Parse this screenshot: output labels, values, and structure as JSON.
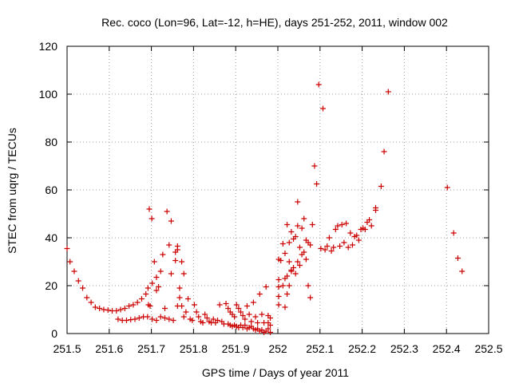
{
  "chart_data": {
    "type": "scatter",
    "title": "Rec. coco (Lon=96, Lat=-12, h=HE), days 251-252, 2011, window 002",
    "xlabel": "GPS time / Days of year 2011",
    "ylabel": "STEC from uqrg / TECUs",
    "xlim": [
      251.5,
      252.5
    ],
    "ylim": [
      0,
      120
    ],
    "xticks": [
      251.5,
      251.6,
      251.7,
      251.8,
      251.9,
      252,
      252.1,
      252.2,
      252.3,
      252.4,
      252.5
    ],
    "xtick_labels": [
      "251.5",
      "251.6",
      "251.7",
      "251.8",
      "251.9",
      "252",
      "252.1",
      "252.2",
      "252.3",
      "252.4",
      "252.5"
    ],
    "yticks": [
      0,
      20,
      40,
      60,
      80,
      100,
      120
    ],
    "ytick_labels": [
      "0",
      "20",
      "40",
      "60",
      "80",
      "100",
      "120"
    ],
    "grid": true,
    "marker": "plus",
    "color": "#cc0000",
    "series": [
      {
        "name": "STEC",
        "points": [
          [
            251.5,
            35.5
          ],
          [
            251.507,
            30
          ],
          [
            251.517,
            26
          ],
          [
            251.527,
            22
          ],
          [
            251.537,
            19
          ],
          [
            251.547,
            15
          ],
          [
            251.557,
            13
          ],
          [
            251.567,
            11
          ],
          [
            251.577,
            10.5
          ],
          [
            251.587,
            10
          ],
          [
            251.597,
            9.8
          ],
          [
            251.607,
            9.5
          ],
          [
            251.617,
            9.5
          ],
          [
            251.627,
            10
          ],
          [
            251.637,
            10.5
          ],
          [
            251.647,
            11.5
          ],
          [
            251.657,
            12
          ],
          [
            251.667,
            13
          ],
          [
            251.677,
            14.5
          ],
          [
            251.687,
            16.5
          ],
          [
            251.692,
            19
          ],
          [
            251.702,
            21
          ],
          [
            251.712,
            23.5
          ],
          [
            251.722,
            26
          ],
          [
            251.621,
            6
          ],
          [
            251.631,
            5.5
          ],
          [
            251.641,
            5.5
          ],
          [
            251.651,
            5.8
          ],
          [
            251.661,
            6
          ],
          [
            251.671,
            6.5
          ],
          [
            251.681,
            7
          ],
          [
            251.691,
            7
          ],
          [
            251.695,
            52
          ],
          [
            251.701,
            48
          ],
          [
            251.693,
            12
          ],
          [
            251.697,
            11.5
          ],
          [
            251.707,
            30
          ],
          [
            251.712,
            18
          ],
          [
            251.717,
            19.5
          ],
          [
            251.702,
            6
          ],
          [
            251.712,
            5.5
          ],
          [
            251.727,
            33
          ],
          [
            251.732,
            10.5
          ],
          [
            251.737,
            51
          ],
          [
            251.742,
            37
          ],
          [
            251.747,
            25
          ],
          [
            251.747,
            47
          ],
          [
            251.722,
            7
          ],
          [
            251.732,
            6.5
          ],
          [
            251.742,
            6
          ],
          [
            251.752,
            5.5
          ],
          [
            251.757,
            34
          ],
          [
            251.757,
            30.5
          ],
          [
            251.762,
            36.5
          ],
          [
            251.762,
            35
          ],
          [
            251.767,
            19
          ],
          [
            251.772,
            30
          ],
          [
            251.777,
            25
          ],
          [
            251.767,
            15
          ],
          [
            251.762,
            11.5
          ],
          [
            251.772,
            11.5
          ],
          [
            251.777,
            7
          ],
          [
            251.787,
            14.5
          ],
          [
            251.782,
            9
          ],
          [
            251.792,
            6
          ],
          [
            251.797,
            5.5
          ],
          [
            251.802,
            12
          ],
          [
            251.807,
            9
          ],
          [
            251.812,
            7
          ],
          [
            251.817,
            5
          ],
          [
            251.822,
            4.5
          ],
          [
            251.827,
            8
          ],
          [
            251.832,
            6.5
          ],
          [
            251.837,
            5
          ],
          [
            251.842,
            4.5
          ],
          [
            251.847,
            6
          ],
          [
            251.852,
            4.5
          ],
          [
            251.857,
            5.5
          ],
          [
            251.862,
            12
          ],
          [
            251.867,
            5
          ],
          [
            251.872,
            4
          ],
          [
            251.877,
            12.5
          ],
          [
            251.882,
            10.5
          ],
          [
            251.887,
            9
          ],
          [
            251.892,
            8
          ],
          [
            251.897,
            7
          ],
          [
            251.902,
            12
          ],
          [
            251.907,
            10.5
          ],
          [
            251.912,
            9
          ],
          [
            251.917,
            7.5
          ],
          [
            251.922,
            6
          ],
          [
            251.927,
            11.5
          ],
          [
            251.932,
            8
          ],
          [
            251.937,
            5
          ],
          [
            251.942,
            13
          ],
          [
            251.947,
            7
          ],
          [
            251.952,
            4.5
          ],
          [
            251.957,
            16.5
          ],
          [
            251.962,
            8
          ],
          [
            251.967,
            4.5
          ],
          [
            251.972,
            19.5
          ],
          [
            251.977,
            7.5
          ],
          [
            251.982,
            6.5
          ],
          [
            251.977,
            4.5
          ],
          [
            251.982,
            3.5
          ],
          [
            251.977,
            2
          ],
          [
            251.882,
            4
          ],
          [
            251.887,
            3.5
          ],
          [
            251.892,
            3
          ],
          [
            251.897,
            3.5
          ],
          [
            251.902,
            3
          ],
          [
            251.907,
            2.5
          ],
          [
            251.912,
            3.5
          ],
          [
            251.917,
            2.5
          ],
          [
            251.922,
            3.5
          ],
          [
            251.927,
            2
          ],
          [
            251.932,
            2.5
          ],
          [
            251.937,
            3
          ],
          [
            251.942,
            2
          ],
          [
            251.947,
            1.5
          ],
          [
            251.952,
            2
          ],
          [
            251.957,
            1
          ],
          [
            251.962,
            1.5
          ],
          [
            251.967,
            0.5
          ],
          [
            251.972,
            1
          ],
          [
            251.982,
            0.5
          ],
          [
            252.002,
            31
          ],
          [
            252.007,
            30.5
          ],
          [
            252.012,
            37.5
          ],
          [
            252.017,
            33.5
          ],
          [
            252.022,
            45.5
          ],
          [
            252.027,
            38
          ],
          [
            252.027,
            30
          ],
          [
            252.032,
            42.5
          ],
          [
            252.032,
            26
          ],
          [
            252.037,
            39.5
          ],
          [
            252.042,
            40.5
          ],
          [
            252.047,
            55
          ],
          [
            252.047,
            45
          ],
          [
            252.052,
            36
          ],
          [
            252.057,
            44
          ],
          [
            252.062,
            48
          ],
          [
            252.067,
            39
          ],
          [
            252.072,
            38
          ],
          [
            252.077,
            37
          ],
          [
            252.082,
            45.5
          ],
          [
            252.087,
            70
          ],
          [
            252.092,
            62.5
          ],
          [
            252.097,
            104
          ],
          [
            252.102,
            35.5
          ],
          [
            252.107,
            94
          ],
          [
            252.112,
            35
          ],
          [
            252.117,
            36.5
          ],
          [
            252.122,
            40
          ],
          [
            252.127,
            34.5
          ],
          [
            252.132,
            36
          ],
          [
            252.137,
            43.5
          ],
          [
            252.142,
            45
          ],
          [
            252.147,
            36.5
          ],
          [
            252.152,
            45.5
          ],
          [
            252.157,
            38
          ],
          [
            252.162,
            46
          ],
          [
            252.167,
            36
          ],
          [
            252.172,
            42
          ],
          [
            252.177,
            37
          ],
          [
            252.182,
            40.5
          ],
          [
            252.187,
            41
          ],
          [
            252.192,
            39
          ],
          [
            252.197,
            43.5
          ],
          [
            252.202,
            44
          ],
          [
            252.207,
            43.5
          ],
          [
            252.212,
            46.5
          ],
          [
            252.217,
            47.5
          ],
          [
            252.222,
            45
          ],
          [
            252.232,
            51.5
          ],
          [
            252.232,
            52.5
          ],
          [
            252.245,
            61.5
          ],
          [
            252.252,
            76
          ],
          [
            252.262,
            101
          ],
          [
            252.002,
            22.5
          ],
          [
            252.002,
            19.5
          ],
          [
            252.002,
            15.5
          ],
          [
            252.002,
            12
          ],
          [
            252.012,
            20
          ],
          [
            252.017,
            23
          ],
          [
            252.022,
            16.5
          ],
          [
            252.017,
            11
          ],
          [
            252.022,
            24
          ],
          [
            252.027,
            20
          ],
          [
            252.032,
            26.5
          ],
          [
            252.037,
            27.5
          ],
          [
            252.042,
            25
          ],
          [
            252.047,
            30
          ],
          [
            252.052,
            28.5
          ],
          [
            252.057,
            33
          ],
          [
            252.062,
            34
          ],
          [
            252.067,
            31
          ],
          [
            252.072,
            20
          ],
          [
            252.077,
            15
          ],
          [
            252.402,
            61
          ],
          [
            252.417,
            42
          ],
          [
            252.427,
            31.5
          ],
          [
            252.437,
            26
          ]
        ]
      }
    ]
  }
}
